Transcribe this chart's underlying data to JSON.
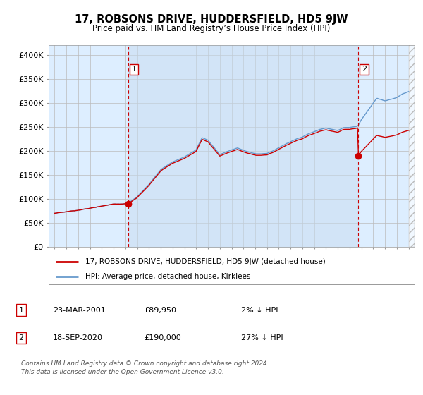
{
  "title": "17, ROBSONS DRIVE, HUDDERSFIELD, HD5 9JW",
  "subtitle": "Price paid vs. HM Land Registry’s House Price Index (HPI)",
  "ylabel_ticks": [
    "£0",
    "£50K",
    "£100K",
    "£150K",
    "£200K",
    "£250K",
    "£300K",
    "£350K",
    "£400K"
  ],
  "ytick_values": [
    0,
    50000,
    100000,
    150000,
    200000,
    250000,
    300000,
    350000,
    400000
  ],
  "ylim": [
    0,
    420000
  ],
  "xlim": [
    1994.5,
    2025.5
  ],
  "sale1_x": 2001.22,
  "sale1_price": 89950,
  "sale2_x": 2020.72,
  "sale2_price": 190000,
  "legend_line1": "17, ROBSONS DRIVE, HUDDERSFIELD, HD5 9JW (detached house)",
  "legend_line2": "HPI: Average price, detached house, Kirklees",
  "table_rows": [
    [
      "1",
      "23-MAR-2001",
      "£89,950",
      "2% ↓ HPI"
    ],
    [
      "2",
      "18-SEP-2020",
      "£190,000",
      "27% ↓ HPI"
    ]
  ],
  "footnote1": "Contains HM Land Registry data © Crown copyright and database right 2024.",
  "footnote2": "This data is licensed under the Open Government Licence v3.0.",
  "hpi_color": "#6699cc",
  "price_color": "#cc0000",
  "bg_color": "#ffffff",
  "plot_bg_color": "#ddeeff",
  "shade_color": "#ddeeff",
  "grid_color": "#bbbbbb",
  "hatch_color": "#bbbbbb",
  "vline_color": "#cc0000",
  "label_box_color": "#cc0000"
}
